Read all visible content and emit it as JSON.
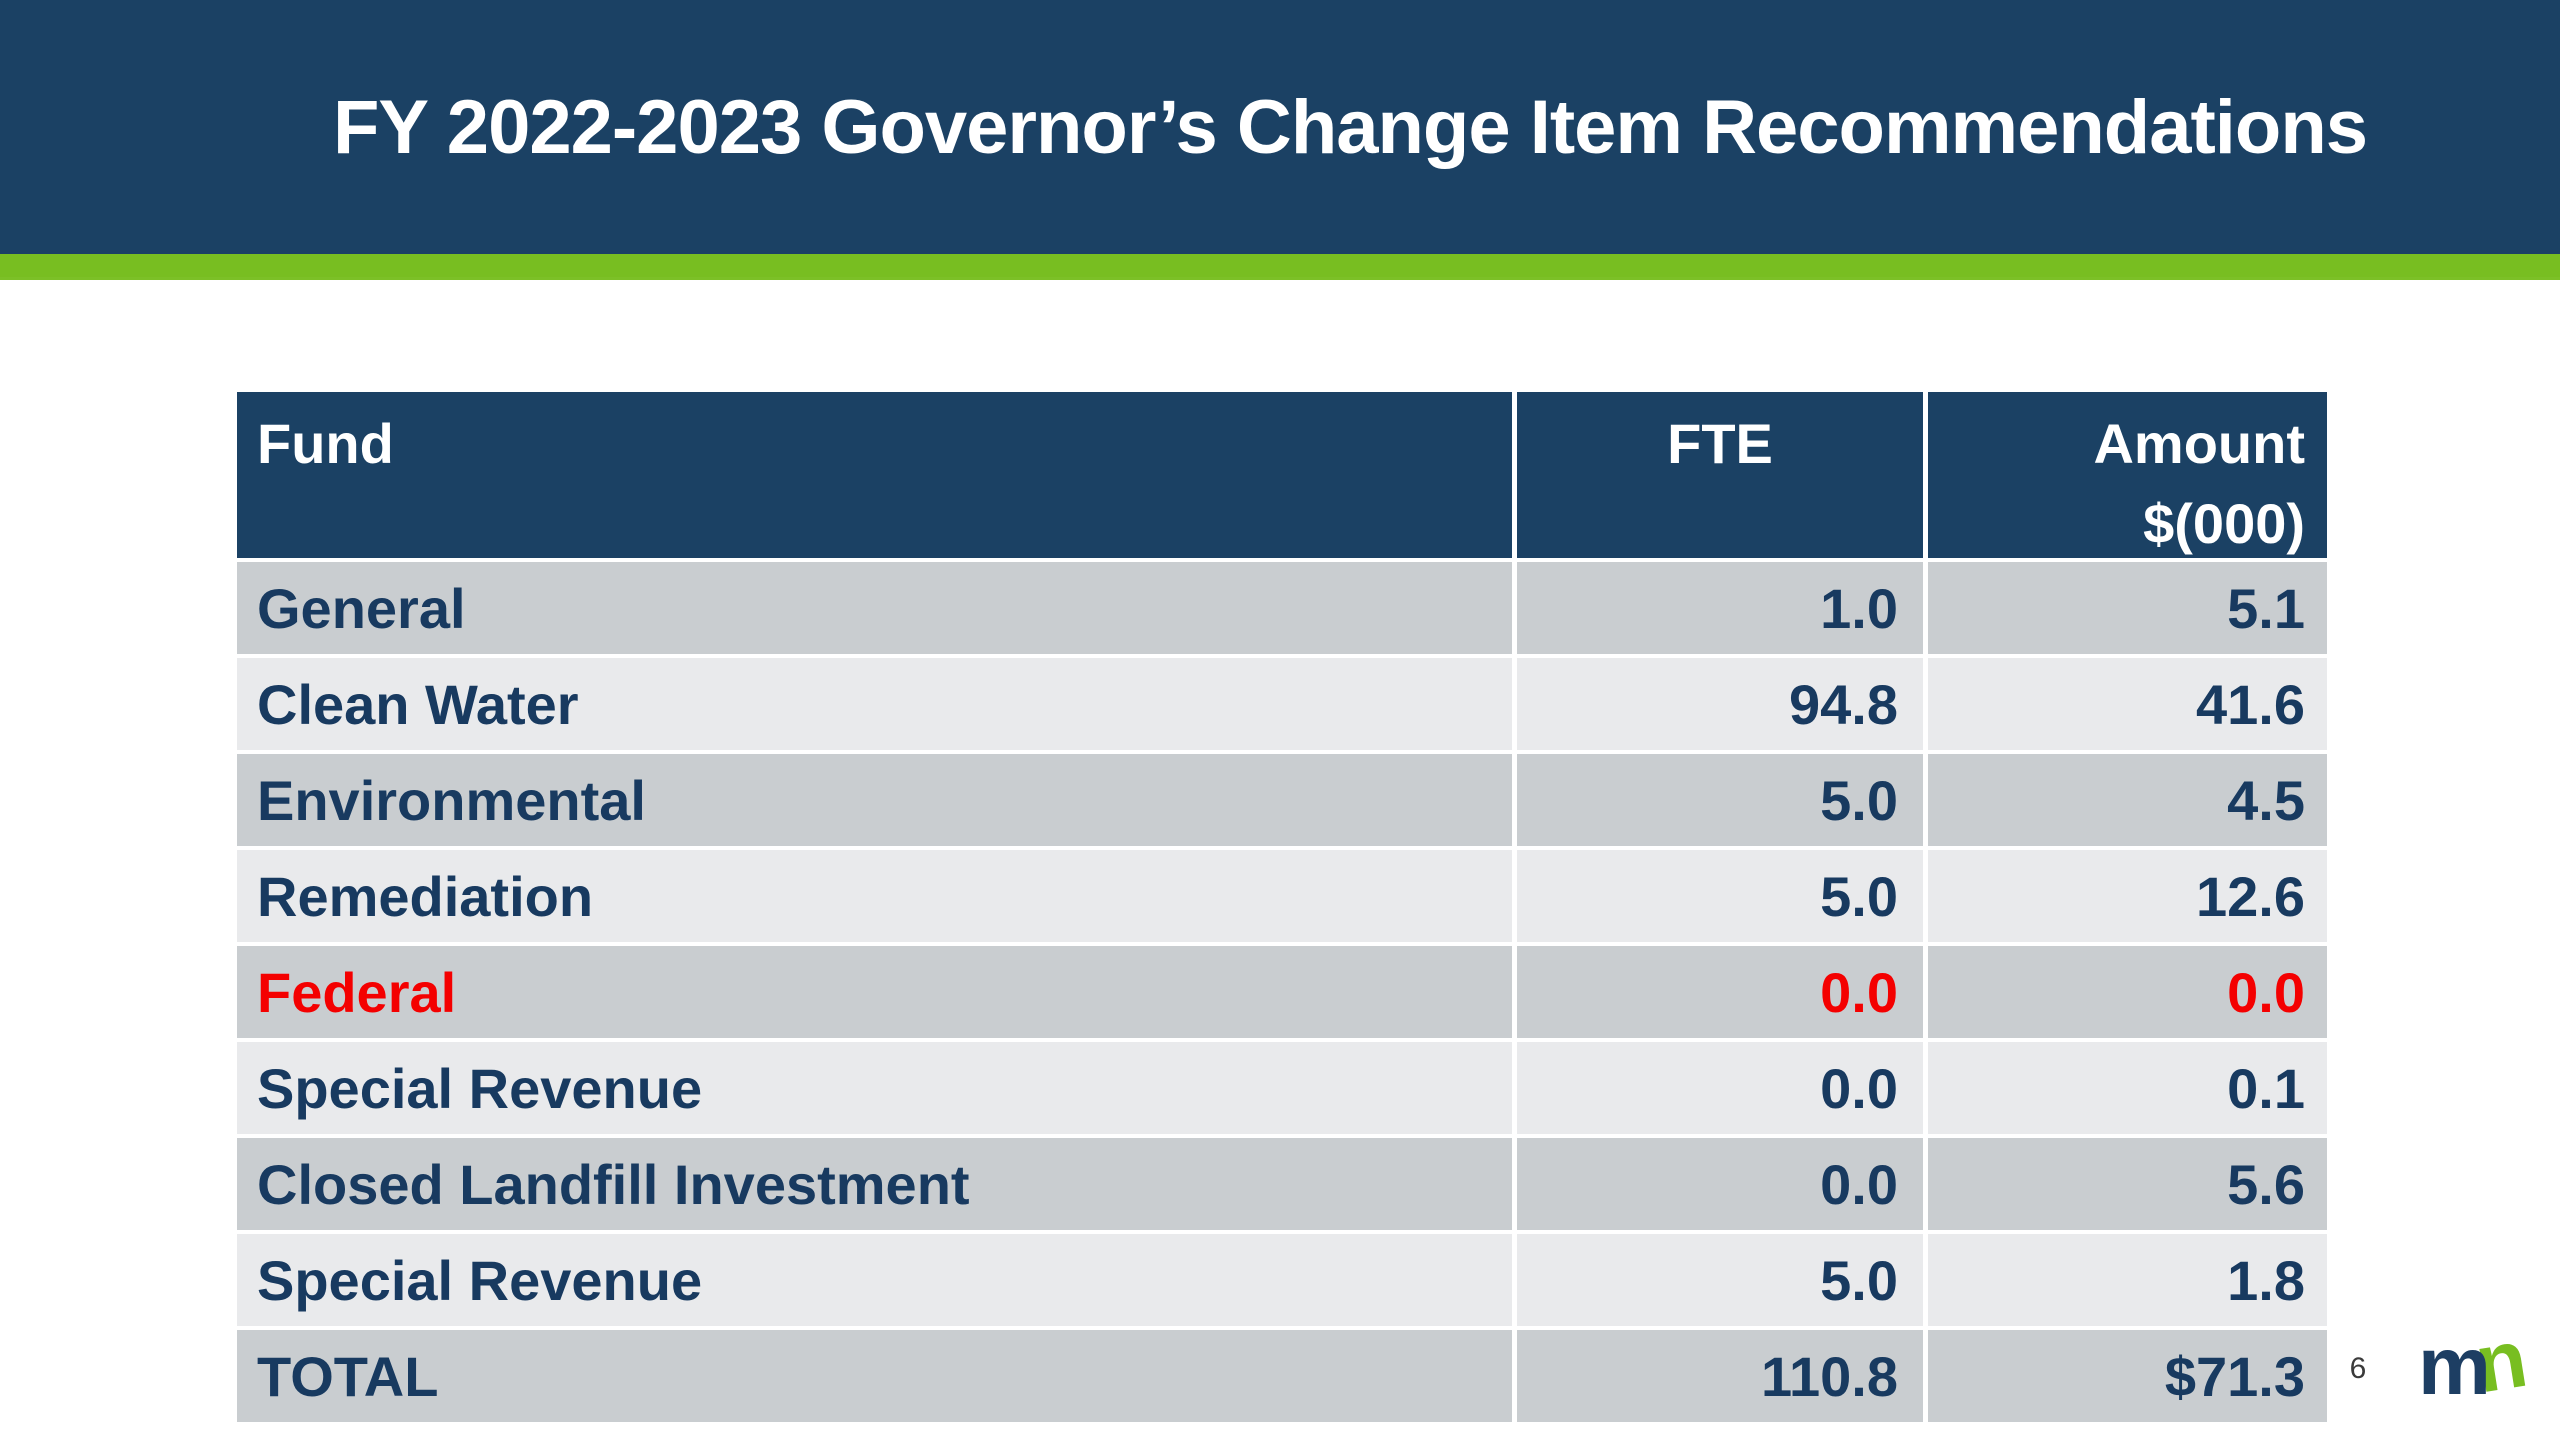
{
  "slide": {
    "title": "FY 2022-2023 Governor’s Change Item Recommendations",
    "page_number": "6",
    "logo_m": "m",
    "logo_n": "n",
    "colors": {
      "banner_navy": "#1b4164",
      "accent_green": "#78be21",
      "row_gray": "#c9cdd0",
      "row_light_gray": "#e9eaec",
      "text_navy": "#183a60",
      "alert_red": "#f40000",
      "logo_navy": "#1d3e63",
      "logo_green": "#78be21"
    }
  },
  "table": {
    "columns": [
      {
        "label": "Fund"
      },
      {
        "label": "FTE"
      },
      {
        "label": "Amount",
        "sublabel": "$(000)"
      }
    ],
    "rows": [
      {
        "fund": "General",
        "fte": "1.0",
        "amount": "5.1"
      },
      {
        "fund": "Clean Water",
        "fte": "94.8",
        "amount": "41.6"
      },
      {
        "fund": "Environmental",
        "fte": "5.0",
        "amount": "4.5"
      },
      {
        "fund": "Remediation",
        "fte": "5.0",
        "amount": "12.6"
      },
      {
        "fund": "Federal",
        "fte": "0.0",
        "amount": "0.0",
        "emphasis": "red"
      },
      {
        "fund": "Special Revenue",
        "fte": "0.0",
        "amount": "0.1"
      },
      {
        "fund": "Closed Landfill Investment",
        "fte": "0.0",
        "amount": "5.6"
      },
      {
        "fund": "Special Revenue",
        "fte": "5.0",
        "amount": "1.8"
      },
      {
        "fund": "TOTAL",
        "fte": "110.8",
        "amount": "$71.3",
        "is_total": true
      }
    ]
  }
}
